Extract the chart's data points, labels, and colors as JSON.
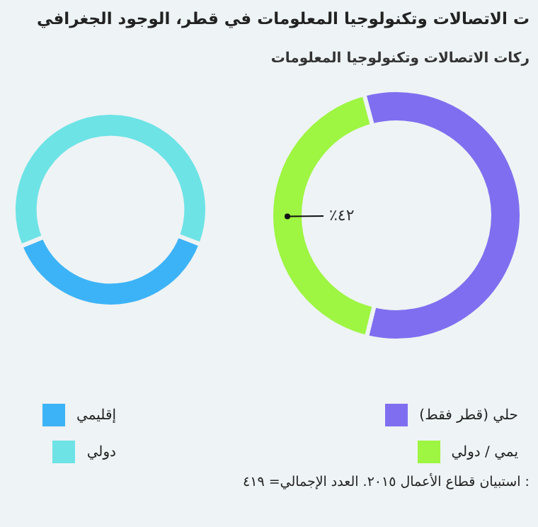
{
  "chart_data": [
    {
      "type": "donut",
      "title": "ت الاتصالات وتكنولوجيا المعلومات في قطر، الوجود الجغرافي",
      "categories": [
        "إقليمي",
        "دولي"
      ],
      "values": [
        38,
        62
      ],
      "colors": [
        "#3db3f7",
        "#6de3e6"
      ],
      "legend": "bottom"
    },
    {
      "type": "donut",
      "subtitle": "ركات الاتصالات وتكنولوجيا المعلومات",
      "categories": [
        "حلي (قطر فقط)",
        "يمي / دولي"
      ],
      "values": [
        58,
        42
      ],
      "colors": [
        "#7f6ff0",
        "#9ef542"
      ],
      "value_labels": [
        null,
        "٪٤٢"
      ],
      "legend": "bottom",
      "annotations": [
        ": استبيان قطاع الأعمال ٢٠١٥. العدد الإجمالي= ٤١٩"
      ]
    }
  ]
}
